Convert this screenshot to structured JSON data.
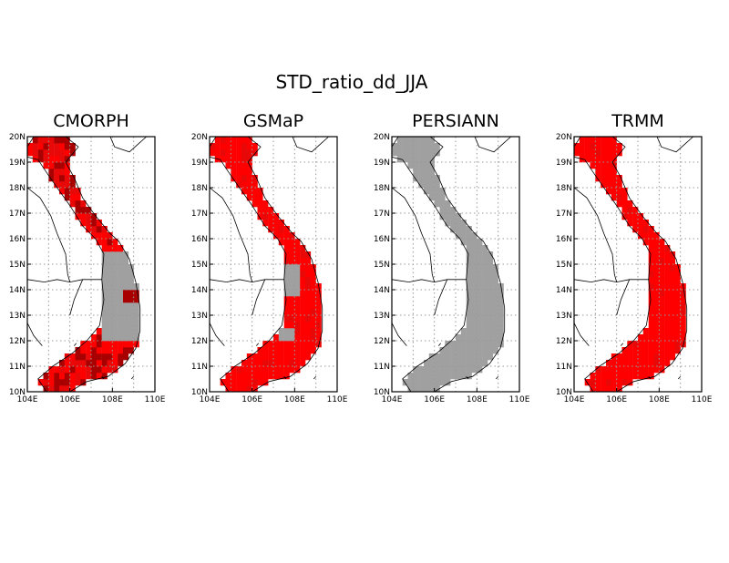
{
  "title": "STD_ratio_dd_JJA",
  "lat_labels": [
    "20N",
    "19N",
    "18N",
    "17N",
    "16N",
    "15N",
    "14N",
    "13N",
    "12N",
    "11N",
    "10N"
  ],
  "lon_labels": [
    "104E",
    "106E",
    "108E",
    "110E"
  ],
  "colors": {
    "ocean": "#ffffff",
    "high": "#ff0000",
    "medium": "#e80808",
    "dark": "#a80000",
    "gray": "#a0a0a0",
    "grid": "#999999"
  },
  "panels": [
    {
      "name": "CMORPH",
      "dominant": "red",
      "gray_region": "south-central highlands",
      "dark_patches": true
    },
    {
      "name": "GSMaP",
      "dominant": "red",
      "gray_region": "small central patches",
      "dark_patches": false
    },
    {
      "name": "PERSIANN",
      "dominant": "gray",
      "gray_region": "entire country",
      "dark_patches": false
    },
    {
      "name": "TRMM",
      "dominant": "red",
      "gray_region": "none",
      "dark_patches": false
    }
  ]
}
